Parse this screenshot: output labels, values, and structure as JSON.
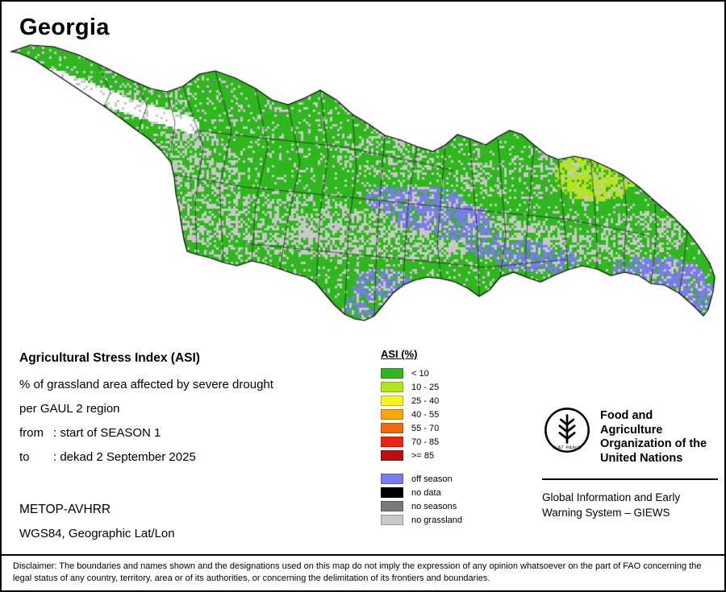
{
  "title": "Georgia",
  "info": {
    "heading": "Agricultural Stress Index (ASI)",
    "line1": "% of grassland area affected by severe drought",
    "line2": "per GAUL 2 region",
    "from_label": "from",
    "from_value": ": start of SEASON 1",
    "to_label": "to",
    "to_value": ": dekad 2 September 2025",
    "sensor": "METOP-AVHRR",
    "projection": "WGS84, Geographic Lat/Lon"
  },
  "legend": {
    "title": "ASI (%)",
    "asi_classes": [
      {
        "label": "< 10",
        "color": "#2fb71e"
      },
      {
        "label": "10 - 25",
        "color": "#b5e41e"
      },
      {
        "label": "25 - 40",
        "color": "#f9f21c"
      },
      {
        "label": "40 - 55",
        "color": "#fba50a"
      },
      {
        "label": "55 - 70",
        "color": "#f4690b"
      },
      {
        "label": "70 - 85",
        "color": "#ee2312"
      },
      {
        "label": ">= 85",
        "color": "#be0e0e"
      }
    ],
    "other_classes": [
      {
        "label": "off season",
        "color": "#7b7bee"
      },
      {
        "label": "no data",
        "color": "#000000"
      },
      {
        "label": "no seasons",
        "color": "#7a7a7a"
      },
      {
        "label": "no grassland",
        "color": "#c8c8c8"
      }
    ]
  },
  "org": {
    "name_lines": [
      "Food and Agriculture",
      "Organization of the",
      "United Nations"
    ],
    "motto": "FIAT PANIS",
    "giews_lines": [
      "Global Information and Early",
      "Warning System – GIEWS"
    ]
  },
  "disclaimer": "Disclaimer: The boundaries and names shown and the designations used on this map do not imply the expression of any opinion whatsoever on the part of FAO concerning the legal status of any country, territory, area or of its authorities, or concerning the delimitation of its frontiers and boundaries."
}
